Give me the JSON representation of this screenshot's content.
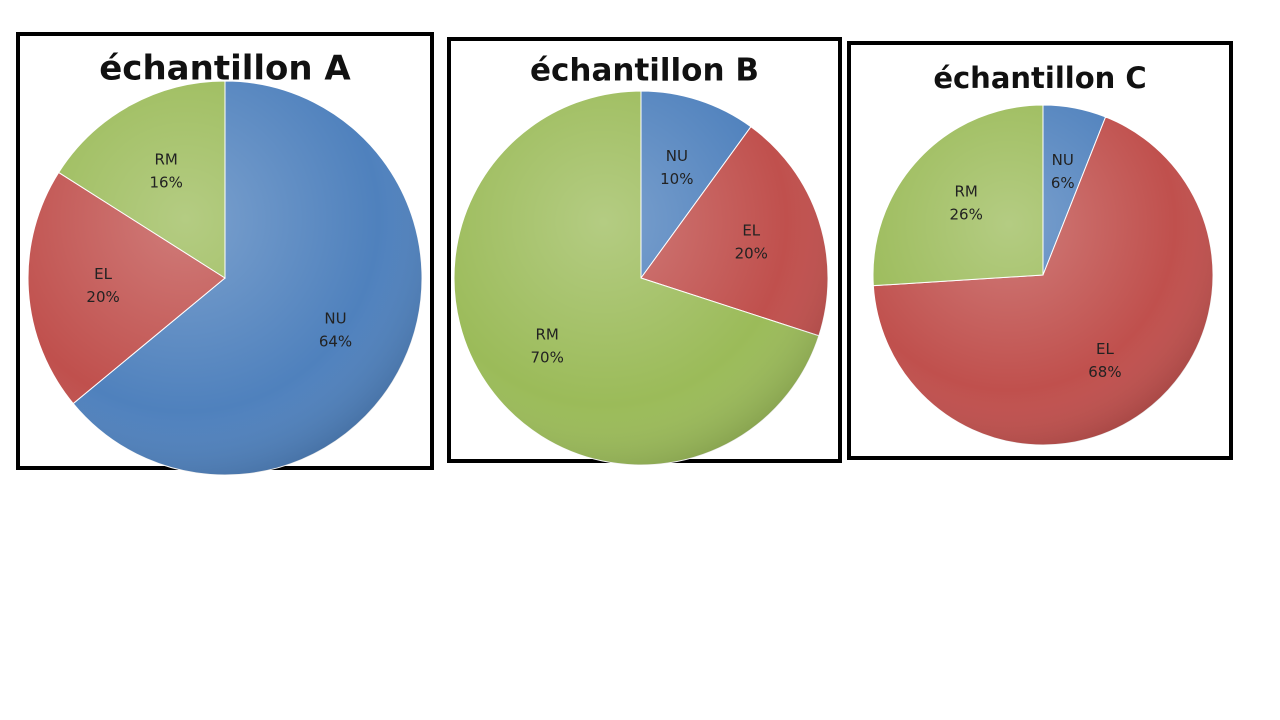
{
  "chart_data": [
    {
      "type": "pie",
      "title": "échantillon A",
      "categories": [
        "NU",
        "EL",
        "RM"
      ],
      "values": [
        64,
        20,
        16
      ],
      "value_labels": [
        "64%",
        "20%",
        "16%"
      ],
      "colors": [
        "#4f81bd",
        "#c0504d",
        "#9bbb59"
      ]
    },
    {
      "type": "pie",
      "title": "échantillon B",
      "categories": [
        "NU",
        "EL",
        "RM"
      ],
      "values": [
        10,
        20,
        70
      ],
      "value_labels": [
        "10%",
        "20%",
        "70%"
      ],
      "colors": [
        "#4f81bd",
        "#c0504d",
        "#9bbb59"
      ]
    },
    {
      "type": "pie",
      "title": "échantillon C",
      "categories": [
        "NU",
        "EL",
        "RM"
      ],
      "values": [
        6,
        68,
        26
      ],
      "value_labels": [
        "6%",
        "68%",
        "26%"
      ],
      "colors": [
        "#4f81bd",
        "#c0504d",
        "#9bbb59"
      ]
    }
  ]
}
